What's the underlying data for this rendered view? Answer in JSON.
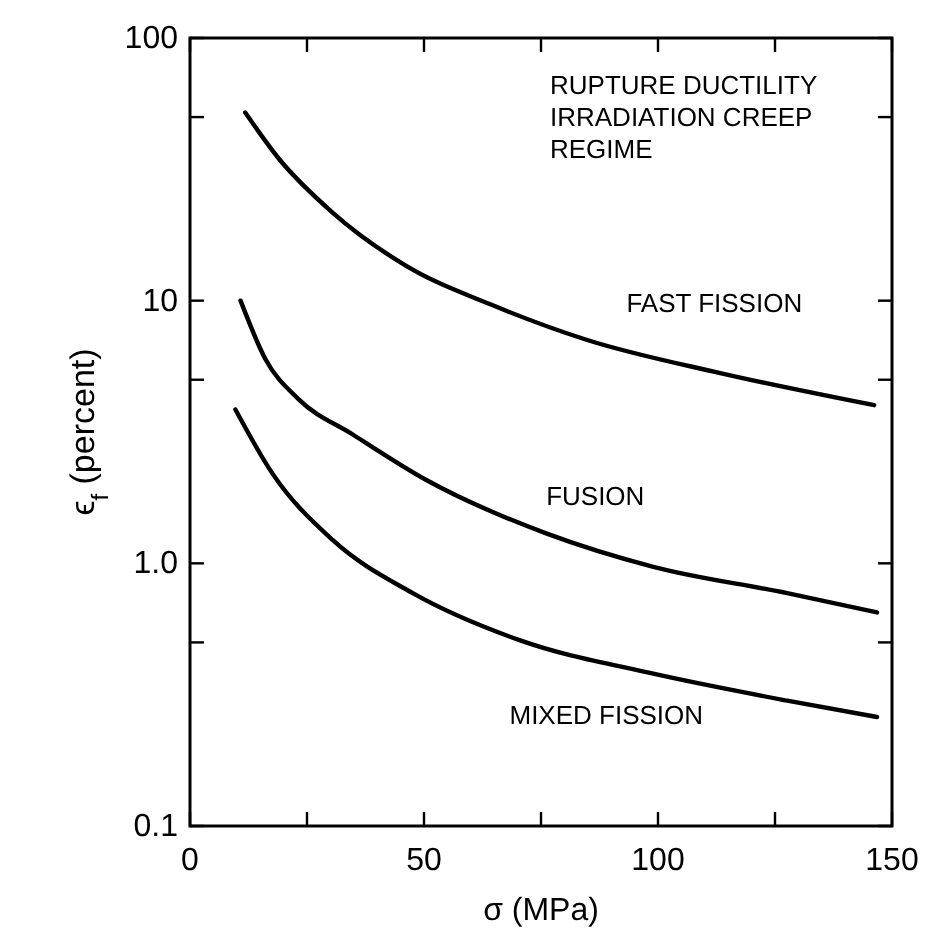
{
  "chart_data": {
    "type": "line",
    "xlabel": "σ (MPa)",
    "ylabel": "ϵ$_{f}$ (percent)",
    "log": "y",
    "xlim": [
      0,
      150
    ],
    "ylim": [
      0.1,
      100
    ],
    "xticks": [
      0,
      {
        "value": 25,
        "label": null
      },
      50,
      {
        "value": 75,
        "label": null
      },
      100,
      {
        "value": 125,
        "label": null
      },
      150
    ],
    "yticks": [
      0.1,
      {
        "value": 0.5,
        "label": null
      },
      {
        "value": 1,
        "label": "1.0"
      },
      {
        "value": 5,
        "label": null
      },
      10,
      {
        "value": 50,
        "label": null
      },
      100
    ],
    "annotations": [
      "RUPTURE DUCTILITY\nIRRADIATION CREEP\nREGIME"
    ],
    "marker": "none",
    "line_style": "solid",
    "grid": false,
    "series": [
      {
        "name": "FAST FISSION",
        "color": "#000000",
        "x": [
          11.8,
          19,
          30.4,
          46.1,
          64.7,
          84.7,
          113.3,
          146.2
        ],
        "values": [
          52,
          34.7,
          21.7,
          13.6,
          9.6,
          7.1,
          5.3,
          4.0
        ]
      },
      {
        "name": "FUSION",
        "color": "#000000",
        "x": [
          10.8,
          16.1,
          23.3,
          34.7,
          50.4,
          76.1,
          99,
          127.6,
          146.8
        ],
        "values": [
          10,
          6.0,
          4.2,
          3.1,
          2.08,
          1.3,
          0.97,
          0.77,
          0.65
        ]
      },
      {
        "name": "MIXED FISSION",
        "color": "#000000",
        "x": [
          9.7,
          17.6,
          30.4,
          47.6,
          70.4,
          99,
          127.6,
          146.8
        ],
        "values": [
          3.85,
          2.2,
          1.23,
          0.77,
          0.51,
          0.38,
          0.3,
          0.26
        ]
      }
    ]
  }
}
